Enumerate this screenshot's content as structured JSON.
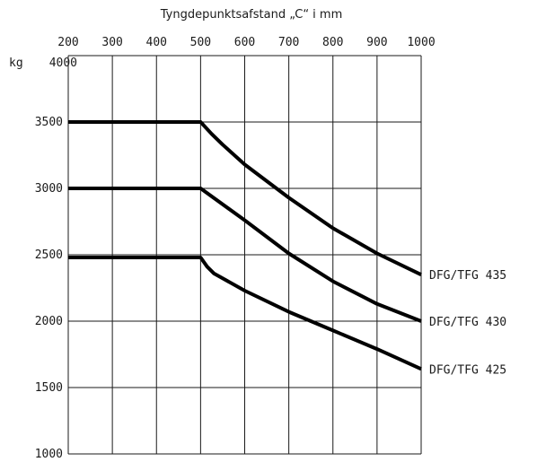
{
  "chart_data": {
    "type": "line",
    "title": "Tyngdepunktsafstand „C“ i mm",
    "ylabel": "kg",
    "xlim": [
      200,
      1000
    ],
    "ylim": [
      1000,
      4000
    ],
    "x_ticks": [
      200,
      300,
      400,
      500,
      600,
      700,
      800,
      900,
      1000
    ],
    "y_ticks": [
      1000,
      1500,
      2000,
      2500,
      3000,
      3500,
      4000
    ],
    "grid": true,
    "series": [
      {
        "name": "DFG/TFG 435",
        "x": [
          200,
          500,
          525,
          550,
          600,
          700,
          800,
          900,
          1000
        ],
        "y": [
          3500,
          3500,
          3410,
          3330,
          3180,
          2930,
          2700,
          2510,
          2350
        ]
      },
      {
        "name": "DFG/TFG 430",
        "x": [
          200,
          500,
          600,
          700,
          800,
          900,
          1000
        ],
        "y": [
          3000,
          3000,
          2760,
          2510,
          2300,
          2130,
          2000
        ]
      },
      {
        "name": "DFG/TFG 425",
        "x": [
          200,
          500,
          515,
          530,
          600,
          700,
          800,
          900,
          1000
        ],
        "y": [
          2480,
          2480,
          2410,
          2360,
          2230,
          2070,
          1930,
          1790,
          1640
        ]
      }
    ]
  }
}
